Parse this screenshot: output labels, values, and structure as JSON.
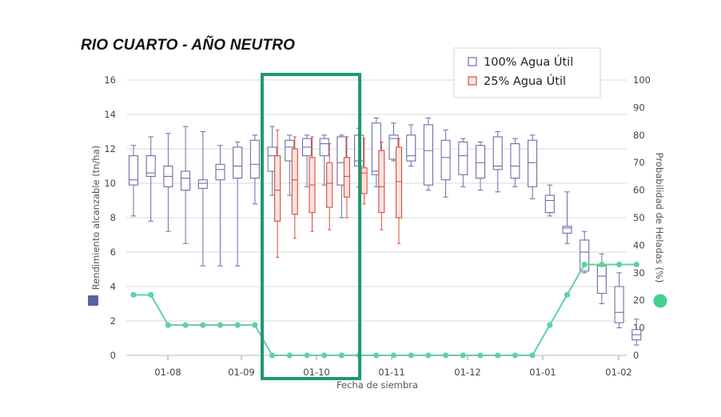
{
  "title": "RIO CUARTO - AÑO NEUTRO",
  "chart_data": {
    "type": "boxplot+line",
    "xlabel": "Fecha de siembra",
    "ylabel_left": "Rendimiento alcanzable (tn/ha)",
    "ylabel_right": "Probabilidad de Heladas (%)",
    "ylim_left": [
      0,
      16
    ],
    "ylim_right": [
      0,
      100
    ],
    "yticks_left": [
      "0",
      "2",
      "4",
      "6",
      "8",
      "10",
      "12",
      "14",
      "16"
    ],
    "yticks_right": [
      "0",
      "10",
      "20",
      "30",
      "40",
      "50",
      "60",
      "70",
      "80",
      "90",
      "100"
    ],
    "xticks": [
      "01-08",
      "01-09",
      "01-10",
      "01-11",
      "01-12",
      "01-01",
      "01-02"
    ],
    "grid": true,
    "legend_position": "top-right",
    "colors": {
      "blue": "#6b6fa8",
      "red": "#d94c3d",
      "green": "#5fd39e",
      "highlight": "#1f9a6e",
      "grid": "#d9d9d9"
    },
    "series": [
      {
        "name": "100% Agua Útil",
        "type": "box",
        "color": "#6b6fa8",
        "boxes": [
          {
            "min": 8.1,
            "q1": 9.9,
            "median": 10.2,
            "q3": 11.6,
            "max": 12.2
          },
          {
            "min": 7.8,
            "q1": 10.4,
            "median": 10.6,
            "q3": 11.6,
            "max": 12.7
          },
          {
            "min": 7.2,
            "q1": 9.8,
            "median": 10.4,
            "q3": 11.0,
            "max": 12.9
          },
          {
            "min": 6.5,
            "q1": 9.6,
            "median": 10.3,
            "q3": 10.7,
            "max": 13.3
          },
          {
            "min": 5.2,
            "q1": 9.7,
            "median": 10.0,
            "q3": 10.2,
            "max": 13.0
          },
          {
            "min": 5.2,
            "q1": 10.2,
            "median": 10.8,
            "q3": 11.1,
            "max": 12.2
          },
          {
            "min": 5.2,
            "q1": 10.3,
            "median": 11.0,
            "q3": 12.1,
            "max": 12.4
          },
          {
            "min": 8.8,
            "q1": 10.3,
            "median": 11.1,
            "q3": 12.5,
            "max": 12.8
          },
          {
            "min": 9.3,
            "q1": 10.7,
            "median": 11.6,
            "q3": 12.1,
            "max": 13.3
          },
          {
            "min": 9.3,
            "q1": 11.3,
            "median": 12.1,
            "q3": 12.5,
            "max": 12.8
          },
          {
            "min": 9.8,
            "q1": 11.6,
            "median": 12.1,
            "q3": 12.6,
            "max": 12.8
          },
          {
            "min": 9.9,
            "q1": 11.6,
            "median": 12.3,
            "q3": 12.6,
            "max": 12.8
          },
          {
            "min": 8.0,
            "q1": 9.9,
            "median": 11.2,
            "q3": 12.7,
            "max": 12.8
          },
          {
            "min": 9.8,
            "q1": 11.0,
            "median": 11.3,
            "q3": 12.8,
            "max": 13.2
          },
          {
            "min": 9.8,
            "q1": 10.5,
            "median": 10.7,
            "q3": 13.5,
            "max": 13.8
          },
          {
            "min": 11.3,
            "q1": 11.4,
            "median": 12.6,
            "q3": 12.8,
            "max": 13.5
          },
          {
            "min": 11.0,
            "q1": 11.3,
            "median": 11.6,
            "q3": 12.8,
            "max": 13.4
          },
          {
            "min": 9.6,
            "q1": 9.9,
            "median": 11.9,
            "q3": 13.4,
            "max": 13.8
          },
          {
            "min": 9.2,
            "q1": 10.2,
            "median": 11.5,
            "q3": 12.5,
            "max": 13.1
          },
          {
            "min": 9.8,
            "q1": 10.5,
            "median": 11.6,
            "q3": 12.4,
            "max": 12.6
          },
          {
            "min": 9.6,
            "q1": 10.3,
            "median": 11.2,
            "q3": 12.2,
            "max": 12.4
          },
          {
            "min": 9.5,
            "q1": 10.8,
            "median": 11.0,
            "q3": 12.7,
            "max": 13.0
          },
          {
            "min": 9.8,
            "q1": 10.3,
            "median": 11.0,
            "q3": 12.3,
            "max": 12.6
          },
          {
            "min": 9.1,
            "q1": 9.8,
            "median": 11.2,
            "q3": 12.5,
            "max": 12.8
          },
          {
            "min": 8.1,
            "q1": 8.3,
            "median": 9.0,
            "q3": 9.3,
            "max": 9.9
          },
          {
            "min": 6.5,
            "q1": 7.1,
            "median": 7.4,
            "q3": 7.5,
            "max": 9.5
          },
          {
            "min": 4.8,
            "q1": 4.9,
            "median": 6.0,
            "q3": 6.7,
            "max": 7.2
          },
          {
            "min": 3.0,
            "q1": 3.6,
            "median": 4.6,
            "q3": 5.2,
            "max": 5.9
          },
          {
            "min": 1.6,
            "q1": 1.9,
            "median": 2.5,
            "q3": 4.0,
            "max": 4.8
          },
          {
            "min": 0.6,
            "q1": 0.9,
            "median": 1.2,
            "q3": 1.5,
            "max": 2.1
          }
        ]
      },
      {
        "name": "25% Agua Útil",
        "type": "box",
        "color": "#d94c3d",
        "boxes": [
          {
            "min": 5.7,
            "q1": 7.8,
            "median": 9.6,
            "q3": 11.6,
            "max": 13.1
          },
          {
            "min": 6.8,
            "q1": 8.2,
            "median": 10.2,
            "q3": 12.0,
            "max": 12.7
          },
          {
            "min": 7.2,
            "q1": 8.3,
            "median": 9.9,
            "q3": 11.5,
            "max": 12.7
          },
          {
            "min": 7.3,
            "q1": 8.6,
            "median": 10.0,
            "q3": 11.2,
            "max": 12.3
          },
          {
            "min": 8.0,
            "q1": 9.2,
            "median": 10.4,
            "q3": 11.5,
            "max": 12.7
          },
          {
            "min": 8.8,
            "q1": 9.4,
            "median": 10.6,
            "q3": 10.9,
            "max": 12.6
          },
          {
            "min": 7.3,
            "q1": 8.3,
            "median": 9.8,
            "q3": 11.9,
            "max": 12.4
          },
          {
            "min": 6.5,
            "q1": 8.0,
            "median": 10.1,
            "q3": 12.1,
            "max": 12.6
          }
        ]
      },
      {
        "name": "Probabilidad de Heladas",
        "type": "line",
        "axis": "right",
        "color": "#5fd39e",
        "values": [
          22,
          22,
          11,
          11,
          11,
          11,
          11,
          11,
          0,
          0,
          0,
          0,
          0,
          0,
          0,
          0,
          0,
          0,
          0,
          0,
          0,
          0,
          0,
          0,
          11,
          22,
          33,
          33,
          33,
          33
        ]
      }
    ]
  }
}
